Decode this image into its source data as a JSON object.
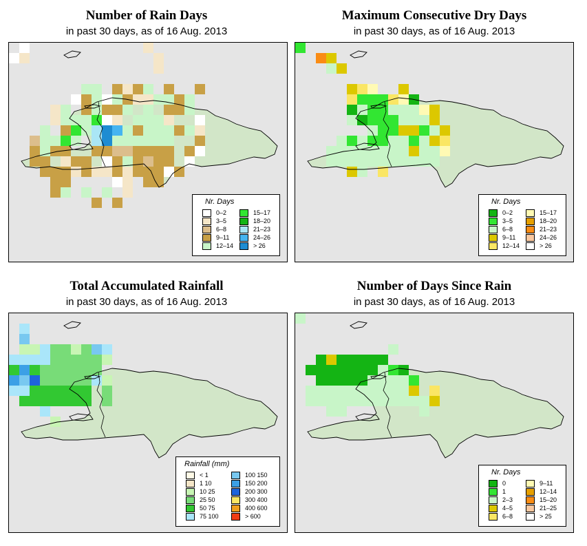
{
  "palettes": {
    "land": "#d2e6c8",
    "coast": "#000000",
    "background": "#e5e5e5"
  },
  "panels": [
    {
      "id": "rain-days",
      "title": "Number of Rain Days",
      "subtitle": "in past 30 days, as of  16 Aug. 2013",
      "legend": {
        "title": "Nr. Days",
        "columns": 2,
        "items": [
          {
            "label": "0–2",
            "color": "#ffffff"
          },
          {
            "label": "3–5",
            "color": "#f5e6c8"
          },
          {
            "label": "6–8",
            "color": "#dcbe8c"
          },
          {
            "label": "9–11",
            "color": "#c8a046"
          },
          {
            "label": "12–14",
            "color": "#c8f5c8"
          },
          {
            "label": "15–17",
            "color": "#32e632"
          },
          {
            "label": "18–20",
            "color": "#14b414"
          },
          {
            "label": "21–23",
            "color": "#aae6f5"
          },
          {
            "label": "24–26",
            "color": "#46b4f0"
          },
          {
            "label": "> 26",
            "color": "#1e8cd2"
          }
        ]
      }
    },
    {
      "id": "dry-days",
      "title": "Maximum Consecutive Dry Days",
      "subtitle": "in past 30 days, as of  16 Aug. 2013",
      "legend": {
        "title": "Nr. Days",
        "columns": 2,
        "items": [
          {
            "label": "0–2",
            "color": "#14b414"
          },
          {
            "label": "3–5",
            "color": "#32e632"
          },
          {
            "label": "6–8",
            "color": "#c8f5c8"
          },
          {
            "label": "9–11",
            "color": "#dcc800"
          },
          {
            "label": "12–14",
            "color": "#fae664"
          },
          {
            "label": "15–17",
            "color": "#fffab4"
          },
          {
            "label": "18–20",
            "color": "#e6a000"
          },
          {
            "label": "21–23",
            "color": "#fa8c14"
          },
          {
            "label": "24–26",
            "color": "#fac8a0"
          },
          {
            "label": "> 26",
            "color": "#ffffff"
          }
        ]
      }
    },
    {
      "id": "rainfall",
      "title": "Total Accumulated Rainfall",
      "subtitle": "in past 30 days, as of  16 Aug. 2013",
      "legend": {
        "title": "Rainfall (mm)",
        "columns": 2,
        "items": [
          {
            "label": "< 1",
            "color": "#fffae6"
          },
          {
            "label": "1   10",
            "color": "#f5e6c8"
          },
          {
            "label": "10   25",
            "color": "#c8f5b4"
          },
          {
            "label": "25   50",
            "color": "#78dc78"
          },
          {
            "label": "50   75",
            "color": "#32c832"
          },
          {
            "label": "75   100",
            "color": "#aae6fa"
          },
          {
            "label": "100   150",
            "color": "#78c8f0"
          },
          {
            "label": "150   200",
            "color": "#3ca0e6"
          },
          {
            "label": "200   300",
            "color": "#1e64dc"
          },
          {
            "label": "300   400",
            "color": "#fae664"
          },
          {
            "label": "400   600",
            "color": "#f0a01e"
          },
          {
            "label": "> 600",
            "color": "#f03c14"
          }
        ]
      }
    },
    {
      "id": "since-rain",
      "title": "Number of Days Since Rain",
      "subtitle": "in past 30 days, as of  16 Aug. 2013",
      "legend": {
        "title": "Nr. Days",
        "columns": 2,
        "items": [
          {
            "label": "0",
            "color": "#14b414"
          },
          {
            "label": "1",
            "color": "#32e632"
          },
          {
            "label": "2–3",
            "color": "#c8f5c8"
          },
          {
            "label": "4–5",
            "color": "#dcc800"
          },
          {
            "label": "6–8",
            "color": "#fae664"
          },
          {
            "label": "9–11",
            "color": "#fffab4"
          },
          {
            "label": "12–14",
            "color": "#e6a000"
          },
          {
            "label": "15–20",
            "color": "#fa8c14"
          },
          {
            "label": "21–25",
            "color": "#fac8a0"
          },
          {
            "label": "> 25",
            "color": "#ffffff"
          }
        ]
      }
    }
  ],
  "grids": {
    "rain-days": [
      "wA..........0B....",
      "AB.........000B....",
      "000.......0...B....",
      "...........0....0..",
      ".......EE.DBDE.D..D",
      "......ADEAEDBBEEDE.",
      "....BE.DEDDE.E.DDE.",
      "....BEEEFAB.EEEB..A",
      "...E.DFEHJIEDEEEDEB",
      "..CEEFE.HJEEEEEE..D",
      "..DEDD..DDCCDDDD.DA",
      "..DD.BDD.ADEDCDD.A.",
      "...DDDBDBBDBDDDAD..",
      "....DD....AB.DD....",
      "....DE.E.E.B.......",
      "........D.D........"
    ],
    "dry-days": [
      "B..............",
      "..HD...........",
      "...CD..........",
      "...............",
      ".....DEF..D....",
      ".....EBBBEFA...",
      ".....ACBBCCCFD.",
      ".....CABBBCCCD.",
      ".......CBBDDBCD",
      "....CBCBBCCBCDE",
      "...CCCCCCCCDCCF",
      "...CCCCCCCCCCC.",
      ".....DC.E......"
    ],
    "rainfall": [
      "..........",
      ".F........",
      ".G........",
      ".CCFDDCDGF",
      "FFFFDDDDDC",
      "EHEDDDDDD.",
      "HGIDDDDDFC",
      "FFEEEEEE.D",
      ".EEEEEEE.D",
      "...F......",
      "....C....."
    ],
    "since-rain": [
      "C.............",
      "..............",
      "..............",
      ".........C....",
      "..ADAAAAA.....",
      ".AAAAAAACBA...",
      "..AAAAACCCCB..",
      ".CCCCCCCCCCD.E",
      ".CCCCCCCCCCCCD",
      "...CC.......C.",
      "..............",
      "..............",
      "..............",
      "..............",
      ".............."
    ]
  }
}
